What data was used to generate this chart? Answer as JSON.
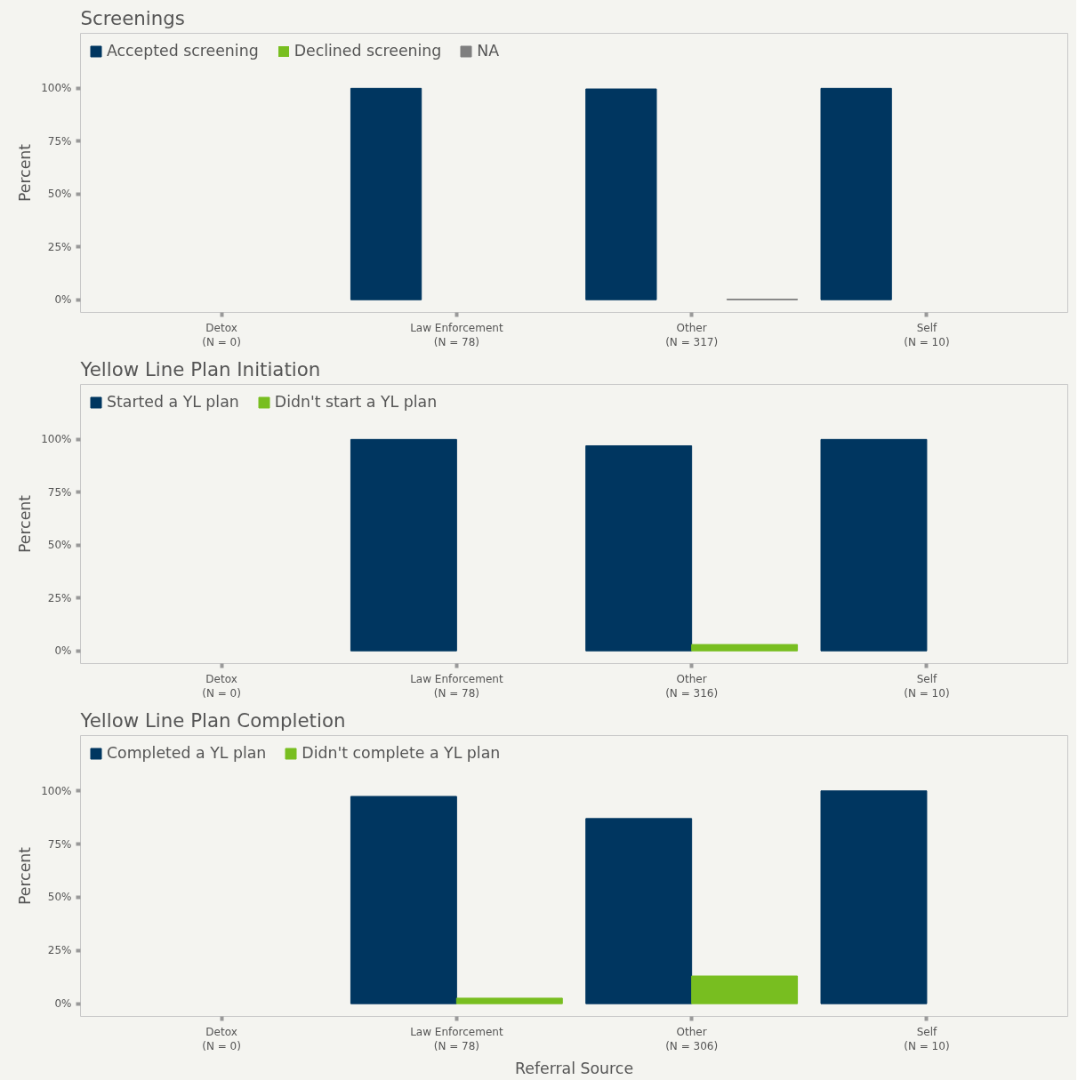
{
  "chart_data": [
    {
      "type": "bar",
      "title": "Screenings",
      "ylabel": "Percent",
      "categories": [
        "Detox\n(N = 0)",
        "Law Enforcement\n(N = 78)",
        "Other\n(N = 317)",
        "Self\n(N = 10)"
      ],
      "series": [
        {
          "name": "Accepted screening",
          "color": "#003660",
          "values": [
            null,
            100,
            99.7,
            100
          ]
        },
        {
          "name": "Declined screening",
          "color": "#78be20",
          "values": [
            null,
            0,
            0,
            0
          ]
        },
        {
          "name": "NA",
          "color": "#7f7f7f",
          "values": [
            null,
            null,
            0.3,
            null
          ]
        }
      ],
      "ylim": [
        -6,
        126
      ],
      "yticks": [
        {
          "value": 0,
          "label": "0%"
        },
        {
          "value": 25,
          "label": "25%"
        },
        {
          "value": 50,
          "label": "50%"
        },
        {
          "value": 75,
          "label": "75%"
        },
        {
          "value": 100,
          "label": "100%"
        }
      ],
      "grid": false,
      "legend": "top left"
    },
    {
      "type": "bar",
      "title": "Yellow Line Plan Initiation",
      "ylabel": "Percent",
      "categories": [
        "Detox\n(N = 0)",
        "Law Enforcement\n(N = 78)",
        "Other\n(N = 316)",
        "Self\n(N = 10)"
      ],
      "series": [
        {
          "name": "Started a YL plan",
          "color": "#003660",
          "values": [
            null,
            100,
            97,
            100
          ]
        },
        {
          "name": "Didn't start a YL plan",
          "color": "#78be20",
          "values": [
            null,
            null,
            3,
            null
          ]
        }
      ],
      "ylim": [
        -6,
        126
      ],
      "yticks": [
        {
          "value": 0,
          "label": "0%"
        },
        {
          "value": 25,
          "label": "25%"
        },
        {
          "value": 50,
          "label": "50%"
        },
        {
          "value": 75,
          "label": "75%"
        },
        {
          "value": 100,
          "label": "100%"
        }
      ],
      "grid": false,
      "legend": "top left"
    },
    {
      "type": "bar",
      "title": "Yellow Line Plan Completion",
      "ylabel": "Percent",
      "xlabel": "Referral Source",
      "categories": [
        "Detox\n(N = 0)",
        "Law Enforcement\n(N = 78)",
        "Other\n(N = 306)",
        "Self\n(N = 10)"
      ],
      "series": [
        {
          "name": "Completed a YL plan",
          "color": "#003660",
          "values": [
            null,
            97.4,
            87,
            100
          ]
        },
        {
          "name": "Didn't complete a YL plan",
          "color": "#78be20",
          "values": [
            null,
            2.6,
            13,
            null
          ]
        }
      ],
      "ylim": [
        -6,
        126
      ],
      "yticks": [
        {
          "value": 0,
          "label": "0%"
        },
        {
          "value": 25,
          "label": "25%"
        },
        {
          "value": 50,
          "label": "50%"
        },
        {
          "value": 75,
          "label": "75%"
        },
        {
          "value": 100,
          "label": "100%"
        }
      ],
      "grid": false,
      "legend": "top left"
    }
  ]
}
